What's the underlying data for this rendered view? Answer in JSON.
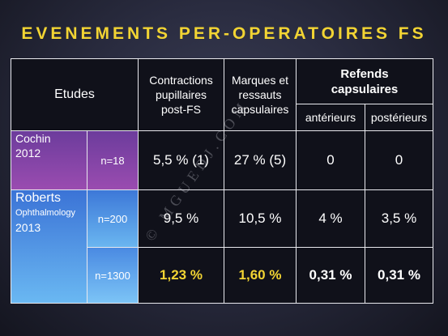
{
  "title": "EVENEMENTS PER-OPERATOIRES FS",
  "headers": {
    "etudes": "Etudes",
    "contractions": [
      "Contractions",
      "pupillaires",
      "post-FS"
    ],
    "marques": [
      "Marques et",
      "ressauts",
      "capsulaires"
    ],
    "refends": [
      "Refends",
      "capsulaires"
    ],
    "anterieurs": "antérieurs",
    "posterieurs": "postérieurs"
  },
  "rows": {
    "cochin": {
      "study": [
        "Cochin",
        "2012"
      ],
      "n": "n=18",
      "contractions": "5,5 % (1)",
      "marques": "27 % (5)",
      "anterieurs": "0",
      "posterieurs": "0"
    },
    "roberts": {
      "study": [
        "Roberts",
        "Ophthalmology",
        "2013"
      ],
      "sub1": {
        "n": "n=200",
        "contractions": "9,5 %",
        "marques": "10,5 %",
        "anterieurs": "4 %",
        "posterieurs": "3,5 %"
      },
      "sub2": {
        "n": "n=1300",
        "contractions": "1,23 %",
        "marques": "1,60 %",
        "anterieurs": "0,31 %",
        "posterieurs": "0,31 %"
      }
    }
  },
  "watermark": "© MGUEDJ.COM",
  "colors": {
    "title": "#f2d433",
    "highlight": "#f2d433",
    "cochin": "#7d45a6",
    "roberts": "#4f95e6"
  }
}
